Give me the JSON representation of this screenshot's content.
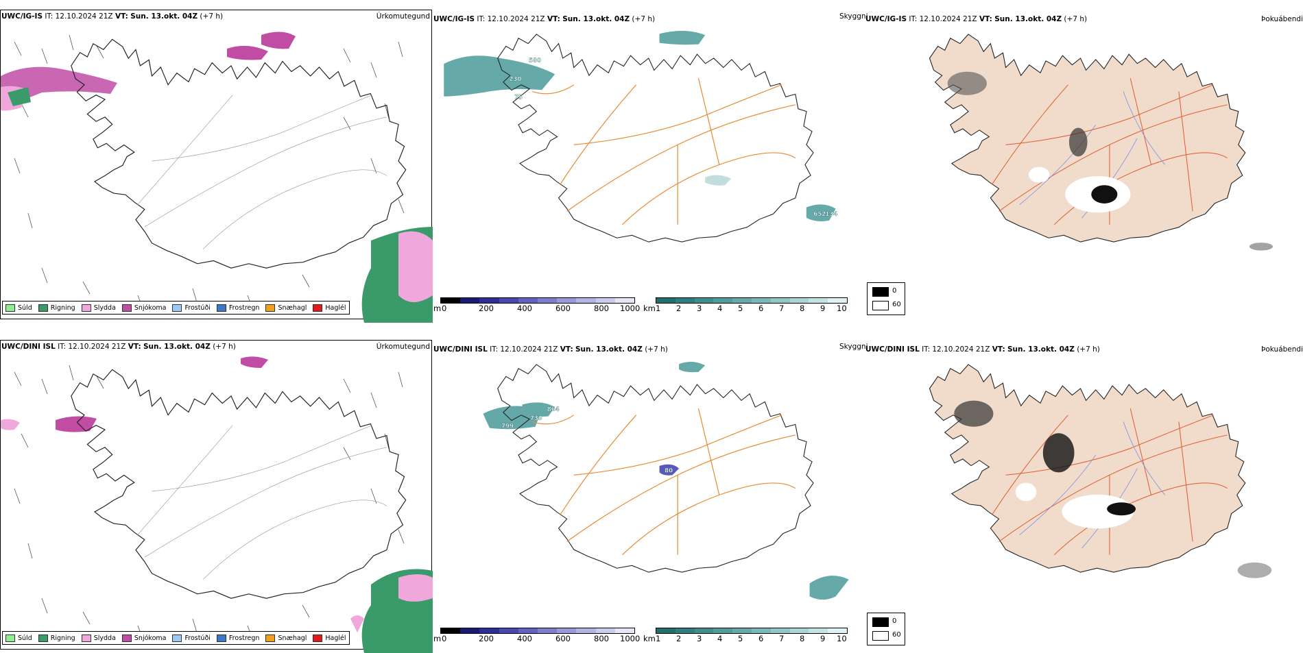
{
  "rows": [
    {
      "header": {
        "model": "UWC/IG-IS",
        "it_label": "IT:",
        "it": "12.10.2024 21Z",
        "vt_label": "VT:",
        "vt": "Sun. 13.okt. 04Z",
        "lead": "(+7 h)"
      },
      "labels": [
        {
          "text": "580"
        },
        {
          "text": "230"
        },
        {
          "text": "75"
        },
        {
          "text": "652"
        },
        {
          "text": "134"
        }
      ]
    },
    {
      "header": {
        "model": "UWC/DINI ISL",
        "it_label": "IT:",
        "it": "12.10.2024 21Z",
        "vt_label": "VT:",
        "vt": "Sun. 13.okt. 04Z",
        "lead": "(+7 h)"
      },
      "labels": [
        {
          "text": "864"
        },
        {
          "text": "733"
        },
        {
          "text": "799"
        },
        {
          "text": "80"
        }
      ]
    }
  ],
  "titles": {
    "precip": "Úrkomutegund",
    "visibility": "Skyggni",
    "fog": "Þokuábendi"
  },
  "precip_legend": [
    {
      "label": "Súld",
      "color": "#90ee90"
    },
    {
      "label": "Rigning",
      "color": "#3a9a6a"
    },
    {
      "label": "Slydda",
      "color": "#f0a8dc"
    },
    {
      "label": "Snjókoma",
      "color": "#c04ca4"
    },
    {
      "label": "Frostúði",
      "color": "#9ccaf4"
    },
    {
      "label": "Frostregn",
      "color": "#3c78c8"
    },
    {
      "label": "Snæhagl",
      "color": "#f0a020"
    },
    {
      "label": "Haglél",
      "color": "#e41a1a"
    }
  ],
  "ceiling_scale": {
    "unit": "m",
    "ticks": [
      "0",
      "200",
      "400",
      "600",
      "800",
      "1000"
    ],
    "colors": [
      "#000000",
      "#1a1a70",
      "#2e2e98",
      "#4848b0",
      "#6262c0",
      "#7e7ecc",
      "#9a9ad8",
      "#b4b4e2",
      "#ccccec",
      "#e6e6f6"
    ]
  },
  "visibility_scale": {
    "unit": "km",
    "ticks": [
      "1",
      "2",
      "3",
      "4",
      "5",
      "6",
      "7",
      "8",
      "9",
      "10"
    ],
    "colors": [
      "#1f6f6f",
      "#2e7f7f",
      "#3f8f8f",
      "#519d9d",
      "#65abab",
      "#7bb9b9",
      "#93c7c7",
      "#abd5d5",
      "#c4e3e3",
      "#e0f1f1"
    ]
  },
  "fog_scale": {
    "ticks": [
      "0",
      "60"
    ],
    "colors": [
      "#000000",
      "#ffffff"
    ]
  }
}
